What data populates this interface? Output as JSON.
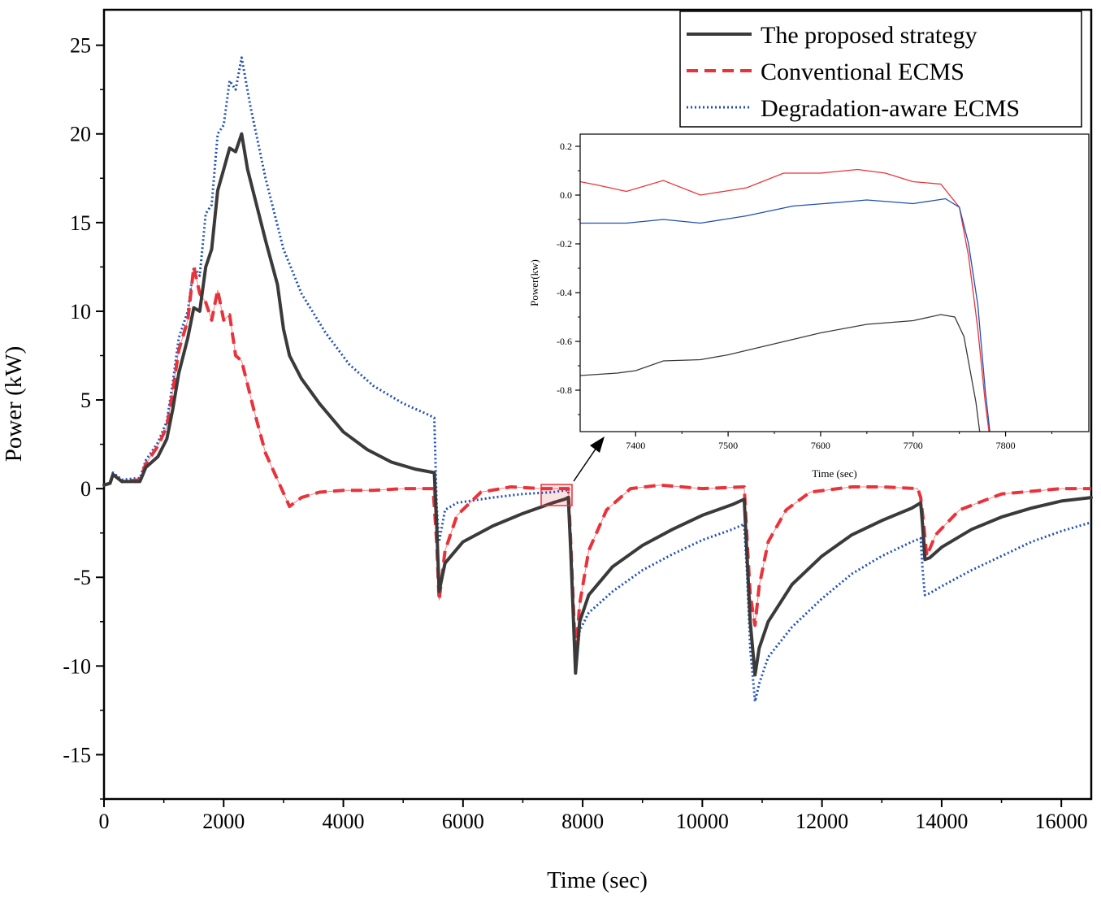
{
  "chart_data": {
    "type": "line",
    "title": "",
    "xlabel": "Time (sec)",
    "ylabel": "Power (kW)",
    "xlim": [
      0,
      16500
    ],
    "ylim": [
      -17.5,
      27
    ],
    "xticks": [
      0,
      2000,
      4000,
      6000,
      8000,
      10000,
      12000,
      14000,
      16000
    ],
    "yticks": [
      -15,
      -10,
      -5,
      0,
      5,
      10,
      15,
      20,
      25
    ],
    "legend_position": "top-right",
    "series": [
      {
        "name": "The proposed strategy",
        "color": "#3a3a3a",
        "style": "solid",
        "x": [
          0,
          100,
          150,
          300,
          600,
          700,
          900,
          1050,
          1150,
          1250,
          1400,
          1500,
          1600,
          1700,
          1800,
          1900,
          2000,
          2100,
          2200,
          2300,
          2400,
          2700,
          2900,
          3000,
          3100,
          3300,
          3600,
          4000,
          4400,
          4800,
          5200,
          5520,
          5560,
          5600,
          5700,
          6000,
          6500,
          7000,
          7500,
          7700,
          7760,
          7800,
          7880,
          7950,
          8100,
          8500,
          9000,
          9500,
          10000,
          10500,
          10700,
          10750,
          10800,
          10880,
          10950,
          11100,
          11500,
          12000,
          12500,
          13000,
          13500,
          13650,
          13680,
          13720,
          13800,
          14000,
          14500,
          15000,
          15500,
          16000,
          16500
        ],
        "values": [
          0.2,
          0.3,
          0.8,
          0.4,
          0.4,
          1.2,
          1.8,
          2.8,
          4.5,
          6.5,
          8.5,
          10.2,
          10.0,
          12.5,
          13.5,
          16.8,
          18.0,
          19.2,
          19.0,
          20.0,
          18.0,
          14.0,
          11.5,
          9.0,
          7.5,
          6.2,
          4.8,
          3.2,
          2.2,
          1.5,
          1.1,
          0.9,
          -2.0,
          -5.8,
          -4.2,
          -3.0,
          -2.1,
          -1.4,
          -0.8,
          -0.6,
          -0.5,
          -3.5,
          -10.4,
          -7.5,
          -6.0,
          -4.4,
          -3.2,
          -2.3,
          -1.5,
          -0.9,
          -0.6,
          -4.0,
          -7.5,
          -10.5,
          -9.0,
          -7.5,
          -5.4,
          -3.8,
          -2.6,
          -1.8,
          -1.1,
          -0.8,
          -2.0,
          -4.0,
          -3.9,
          -3.3,
          -2.3,
          -1.6,
          -1.1,
          -0.7,
          -0.5
        ]
      },
      {
        "name": "Conventional ECMS",
        "color": "#e8333a",
        "style": "dashed",
        "x": [
          0,
          100,
          150,
          300,
          600,
          700,
          900,
          1050,
          1150,
          1250,
          1400,
          1500,
          1600,
          1700,
          1800,
          1900,
          2000,
          2100,
          2200,
          2300,
          2500,
          2700,
          2900,
          3100,
          3300,
          3600,
          4000,
          4500,
          5000,
          5500,
          5560,
          5600,
          5700,
          5900,
          6300,
          6800,
          7300,
          7700,
          7760,
          7800,
          7880,
          7950,
          8100,
          8400,
          8800,
          9300,
          10000,
          10700,
          10750,
          10800,
          10880,
          10950,
          11100,
          11400,
          11800,
          12500,
          13000,
          13600,
          13650,
          13700,
          13750,
          13900,
          14300,
          15000,
          16000,
          16500
        ],
        "values": [
          0.2,
          0.3,
          0.8,
          0.4,
          0.5,
          1.4,
          2.4,
          3.5,
          5.5,
          7.8,
          9.5,
          12.5,
          11.0,
          10.5,
          9.5,
          11.2,
          9.5,
          9.8,
          7.5,
          7.2,
          4.5,
          2.0,
          0.5,
          -1.0,
          -0.5,
          -0.2,
          -0.1,
          -0.1,
          0.0,
          0.0,
          -3.0,
          -6.3,
          -3.5,
          -1.5,
          -0.2,
          0.1,
          0.0,
          0.0,
          0.0,
          -3.0,
          -9.5,
          -6.5,
          -3.5,
          -1.2,
          0.0,
          0.2,
          0.0,
          0.1,
          -3.0,
          -6.0,
          -7.7,
          -5.5,
          -3.0,
          -1.2,
          -0.2,
          0.1,
          0.1,
          0.0,
          -0.5,
          -2.0,
          -3.8,
          -2.6,
          -1.2,
          -0.3,
          0.0,
          0.0
        ]
      },
      {
        "name": "Degradation-aware ECMS",
        "color": "#1f4fb5",
        "style": "dotted",
        "x": [
          0,
          100,
          150,
          300,
          600,
          700,
          900,
          1050,
          1150,
          1250,
          1400,
          1500,
          1600,
          1700,
          1800,
          1900,
          2000,
          2100,
          2200,
          2300,
          2450,
          2700,
          3000,
          3300,
          3700,
          4100,
          4500,
          5000,
          5400,
          5520,
          5560,
          5600,
          5700,
          5900,
          6500,
          7000,
          7500,
          7700,
          7760,
          7800,
          7880,
          7950,
          8100,
          8500,
          9000,
          9500,
          10000,
          10500,
          10700,
          10750,
          10800,
          10880,
          10950,
          11100,
          11500,
          12000,
          12500,
          13000,
          13500,
          13650,
          13680,
          13720,
          13800,
          14000,
          14500,
          15000,
          15500,
          16000,
          16500
        ],
        "values": [
          0.2,
          0.3,
          0.9,
          0.5,
          0.6,
          1.6,
          2.6,
          3.8,
          6.0,
          8.5,
          10.0,
          12.5,
          12.0,
          15.5,
          16.0,
          20.0,
          20.5,
          23.0,
          22.5,
          24.3,
          21.5,
          17.5,
          13.5,
          11.0,
          8.8,
          7.0,
          5.8,
          4.8,
          4.2,
          4.0,
          -1.0,
          -3.0,
          -1.2,
          -0.8,
          -0.5,
          -0.3,
          -0.2,
          -0.1,
          -0.1,
          -3.5,
          -10.2,
          -8.0,
          -7.0,
          -5.8,
          -4.6,
          -3.7,
          -2.9,
          -2.3,
          -2.0,
          -5.0,
          -9.0,
          -12.0,
          -11.0,
          -9.5,
          -7.8,
          -6.2,
          -4.8,
          -3.8,
          -3.0,
          -2.8,
          -4.5,
          -6.0,
          -5.9,
          -5.5,
          -4.6,
          -3.8,
          -3.0,
          -2.4,
          -1.9
        ]
      }
    ],
    "inset": {
      "xlabel": "Time (sec)",
      "ylabel": "Power(kw)",
      "xlim": [
        7340,
        7890
      ],
      "ylim": [
        -0.97,
        0.25
      ],
      "xticks": [
        7400,
        7500,
        7600,
        7700,
        7800
      ],
      "yticks": [
        0.2,
        0.0,
        -0.2,
        -0.4,
        -0.6,
        -0.8
      ],
      "series": [
        {
          "name": "The proposed strategy",
          "color": "#3a3a3a",
          "x": [
            7340,
            7380,
            7400,
            7430,
            7470,
            7500,
            7550,
            7600,
            7650,
            7700,
            7730,
            7745,
            7755,
            7768,
            7772
          ],
          "values": [
            -0.74,
            -0.73,
            -0.72,
            -0.68,
            -0.675,
            -0.655,
            -0.61,
            -0.565,
            -0.53,
            -0.515,
            -0.49,
            -0.5,
            -0.58,
            -0.85,
            -0.97
          ]
        },
        {
          "name": "Conventional ECMS",
          "color": "#e8333a",
          "x": [
            7340,
            7360,
            7390,
            7430,
            7470,
            7520,
            7560,
            7600,
            7640,
            7670,
            7700,
            7730,
            7750,
            7760,
            7770,
            7778,
            7782
          ],
          "values": [
            0.055,
            0.04,
            0.015,
            0.06,
            0.0,
            0.03,
            0.09,
            0.09,
            0.105,
            0.09,
            0.055,
            0.045,
            -0.05,
            -0.25,
            -0.55,
            -0.85,
            -0.97
          ]
        },
        {
          "name": "Degradation-aware ECMS",
          "color": "#1f4fb5",
          "x": [
            7340,
            7390,
            7430,
            7470,
            7520,
            7570,
            7620,
            7650,
            7700,
            7735,
            7750,
            7760,
            7770,
            7778,
            7783
          ],
          "values": [
            -0.115,
            -0.115,
            -0.1,
            -0.115,
            -0.085,
            -0.045,
            -0.03,
            -0.02,
            -0.035,
            -0.015,
            -0.05,
            -0.2,
            -0.45,
            -0.8,
            -0.97
          ]
        }
      ]
    }
  }
}
